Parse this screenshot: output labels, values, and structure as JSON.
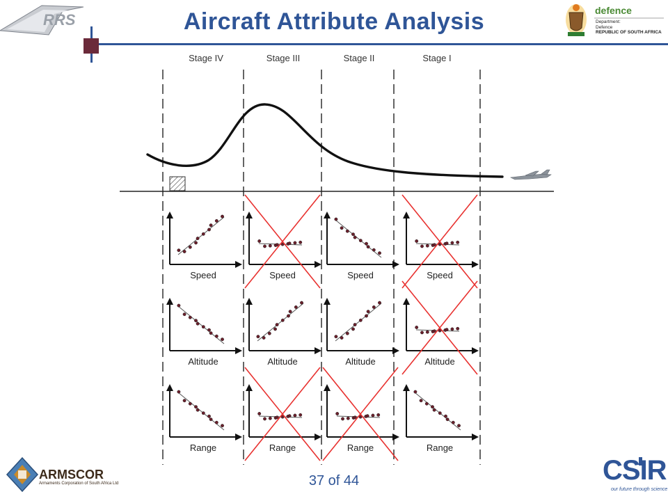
{
  "header": {
    "title": "Aircraft Attribute Analysis",
    "logo_left": "RRS",
    "logo_right_word": "defence",
    "logo_right_lines": [
      "Department:",
      "Defence",
      "REPUBLIC OF SOUTH AFRICA"
    ]
  },
  "stages": [
    "Stage IV",
    "Stage III",
    "Stage II",
    "Stage I"
  ],
  "row_labels": [
    "Speed",
    "Altitude",
    "Range"
  ],
  "panels": [
    [
      "up",
      "flat",
      "down",
      "flat"
    ],
    [
      "down",
      "up",
      "up",
      "flat"
    ],
    [
      "down",
      "flat",
      "flat",
      "down"
    ]
  ],
  "crossed": [
    [
      false,
      true,
      false,
      true
    ],
    [
      false,
      false,
      false,
      true
    ],
    [
      false,
      true,
      true,
      false
    ]
  ],
  "footer": {
    "page": "37 of 44",
    "left_logo_name": "ARMSCOR",
    "left_logo_sub": "Armaments Corporation of South Africa Ltd",
    "right_logo_name": "CSIR",
    "right_logo_tag": "our future through science"
  },
  "colors": {
    "title": "#2f5597",
    "cross": "#e8312f",
    "accent_square": "#6b2a3a",
    "ink": "#111111"
  },
  "icons": [
    "rrs-logo-icon",
    "coat-of-arms-icon",
    "aircraft-icon",
    "armscor-logo-icon",
    "csir-logo-icon"
  ]
}
